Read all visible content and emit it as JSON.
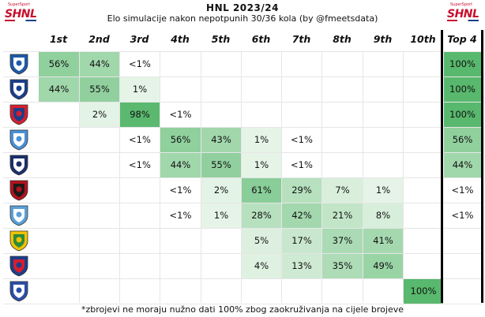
{
  "header": {
    "title": "HNL 2023/24",
    "subtitle": "Elo simulacije nakon nepotpunih 30/36 kola (by @fmeetsdata)",
    "logo_text": "SHNL",
    "logo_small_text": "SuperSport",
    "logo_color": "#c8102e"
  },
  "footnote": "*zbrojevi ne moraju nužno dati 100% zbog zaokruživanja na cijele brojeve",
  "colors": {
    "cell_scale_low": "#e8f5e9",
    "cell_scale_high": "#58b86d",
    "top4_divider": "#000000"
  },
  "chart_data": {
    "type": "table",
    "title": "HNL 2023/24",
    "subtitle": "Elo simulacije nakon nepotpunih 30/36 kola (by @fmeetsdata)",
    "columns": [
      "1st",
      "2nd",
      "3rd",
      "4th",
      "5th",
      "6th",
      "7th",
      "8th",
      "9th",
      "10th",
      "Top 4"
    ],
    "rows": [
      {
        "crest": "rijeka-crest-icon",
        "colors": [
          "#1e5aa8",
          "#ffffff"
        ],
        "cells": [
          "56%",
          "44%",
          "<1%",
          "",
          "",
          "",
          "",
          "",
          "",
          "",
          "100%"
        ],
        "values": [
          56,
          44,
          0.5,
          null,
          null,
          null,
          null,
          null,
          null,
          null,
          100
        ]
      },
      {
        "crest": "dinamo-crest-icon",
        "colors": [
          "#1b3f8b",
          "#ffffff"
        ],
        "cells": [
          "44%",
          "55%",
          "1%",
          "",
          "",
          "",
          "",
          "",
          "",
          "",
          "100%"
        ],
        "values": [
          44,
          55,
          1,
          null,
          null,
          null,
          null,
          null,
          null,
          null,
          100
        ]
      },
      {
        "crest": "hajduk-crest-icon",
        "colors": [
          "#d81e2c",
          "#1b3f8b"
        ],
        "cells": [
          "",
          "2%",
          "98%",
          "<1%",
          "",
          "",
          "",
          "",
          "",
          "",
          "100%"
        ],
        "values": [
          null,
          2,
          98,
          0.5,
          null,
          null,
          null,
          null,
          null,
          null,
          100
        ]
      },
      {
        "crest": "osijek-crest-icon",
        "colors": [
          "#4a8fd4",
          "#ffffff"
        ],
        "cells": [
          "",
          "",
          "<1%",
          "56%",
          "43%",
          "1%",
          "<1%",
          "",
          "",
          "",
          "56%"
        ],
        "values": [
          null,
          null,
          0.5,
          56,
          43,
          1,
          0.5,
          null,
          null,
          null,
          56
        ]
      },
      {
        "crest": "lokomotiva-crest-icon",
        "colors": [
          "#1b2e6b",
          "#ffffff"
        ],
        "cells": [
          "",
          "",
          "<1%",
          "44%",
          "55%",
          "1%",
          "<1%",
          "",
          "",
          "",
          "44%"
        ],
        "values": [
          null,
          null,
          0.5,
          44,
          55,
          1,
          0.5,
          null,
          null,
          null,
          44
        ]
      },
      {
        "crest": "gorica-crest-icon",
        "colors": [
          "#b3121c",
          "#1a1a1a"
        ],
        "cells": [
          "",
          "",
          "",
          "<1%",
          "2%",
          "61%",
          "29%",
          "7%",
          "1%",
          "",
          "<1%"
        ],
        "values": [
          null,
          null,
          null,
          0.5,
          2,
          61,
          29,
          7,
          1,
          null,
          0.5
        ]
      },
      {
        "crest": "varazdin-crest-icon",
        "colors": [
          "#5aa0d8",
          "#ffffff"
        ],
        "cells": [
          "",
          "",
          "",
          "<1%",
          "1%",
          "28%",
          "42%",
          "21%",
          "8%",
          "",
          "<1%"
        ],
        "values": [
          null,
          null,
          null,
          0.5,
          1,
          28,
          42,
          21,
          8,
          null,
          0.5
        ]
      },
      {
        "crest": "istra-crest-icon",
        "colors": [
          "#f2c200",
          "#2e8b3c"
        ],
        "cells": [
          "",
          "",
          "",
          "",
          "",
          "5%",
          "17%",
          "37%",
          "41%",
          "",
          ""
        ],
        "values": [
          null,
          null,
          null,
          null,
          null,
          5,
          17,
          37,
          41,
          null,
          null
        ]
      },
      {
        "crest": "slaven-crest-icon",
        "colors": [
          "#1b3f8b",
          "#d81e2c"
        ],
        "cells": [
          "",
          "",
          "",
          "",
          "",
          "4%",
          "13%",
          "35%",
          "49%",
          "",
          ""
        ],
        "values": [
          null,
          null,
          null,
          null,
          null,
          4,
          13,
          35,
          49,
          null,
          null
        ]
      },
      {
        "crest": "rudes-crest-icon",
        "colors": [
          "#2b4ea8",
          "#ffffff"
        ],
        "cells": [
          "",
          "",
          "",
          "",
          "",
          "",
          "",
          "",
          "",
          "100%",
          ""
        ],
        "values": [
          null,
          null,
          null,
          null,
          null,
          null,
          null,
          null,
          null,
          100,
          null
        ]
      }
    ],
    "color_scale": {
      "min": 0,
      "max": 100
    }
  }
}
